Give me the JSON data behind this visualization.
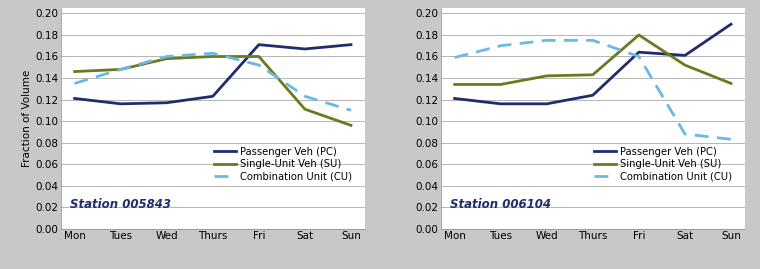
{
  "days": [
    "Mon",
    "Tues",
    "Wed",
    "Thurs",
    "Fri",
    "Sat",
    "Sun"
  ],
  "station1": {
    "label": "Station 005843",
    "PC": [
      0.121,
      0.116,
      0.117,
      0.123,
      0.171,
      0.167,
      0.171
    ],
    "SU": [
      0.146,
      0.148,
      0.158,
      0.16,
      0.16,
      0.111,
      0.096
    ],
    "CU": [
      0.135,
      0.148,
      0.16,
      0.163,
      0.152,
      0.123,
      0.11
    ]
  },
  "station2": {
    "label": "Station 006104",
    "PC": [
      0.121,
      0.116,
      0.116,
      0.124,
      0.164,
      0.161,
      0.19
    ],
    "SU": [
      0.134,
      0.134,
      0.142,
      0.143,
      0.18,
      0.152,
      0.135
    ],
    "CU": [
      0.159,
      0.17,
      0.175,
      0.175,
      0.16,
      0.088,
      0.083
    ]
  },
  "colors": {
    "PC": "#1F2D6B",
    "SU": "#6B7A1F",
    "CU": "#6BB8E8"
  },
  "legend_labels": {
    "PC": "Passenger Veh (PC)",
    "SU": "Single-Unit Veh (SU)",
    "CU": "Combination Unit (CU)"
  },
  "ylim": [
    0.0,
    0.205
  ],
  "yticks": [
    0.0,
    0.02,
    0.04,
    0.06,
    0.08,
    0.1,
    0.12,
    0.14,
    0.16,
    0.18,
    0.2
  ],
  "ylabel": "Fraction of Volume",
  "bg_color": "#C8C8C8",
  "plot_bg_color": "#FFFFFF",
  "linewidth": 2.0
}
